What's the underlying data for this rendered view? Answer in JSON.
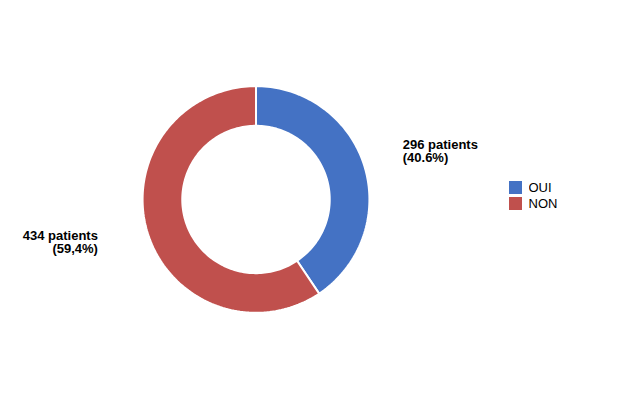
{
  "chart_data": {
    "type": "pie",
    "categories": [
      "OUI",
      "NON"
    ],
    "values": [
      40.6,
      59.4
    ],
    "colors": [
      "#4472C4",
      "#C0504D"
    ],
    "annotations": [
      "296 patients\n(40.6%)",
      "434 patients\n(59,4%)"
    ],
    "legend": "right"
  }
}
